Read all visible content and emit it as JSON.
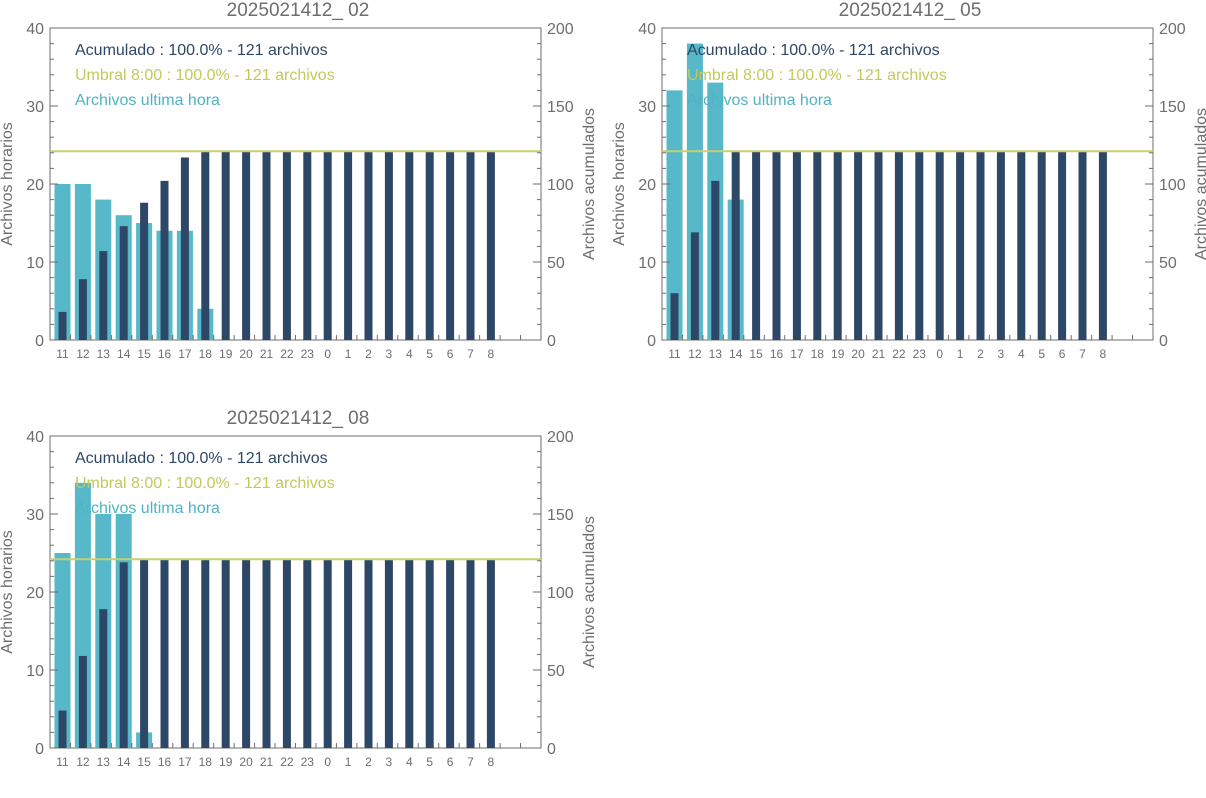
{
  "chart_data": [
    {
      "type": "bar",
      "title": "2025021412_ 02",
      "ylabel_left": "Archivos horarios",
      "ylabel_right": "Archivos acumulados",
      "categories": [
        "11",
        "12",
        "13",
        "14",
        "15",
        "16",
        "17",
        "18",
        "19",
        "20",
        "21",
        "22",
        "23",
        "0",
        "1",
        "2",
        "3",
        "4",
        "5",
        "6",
        "7",
        "8"
      ],
      "ylim_left": [
        0,
        40
      ],
      "ylim_right": [
        0,
        200
      ],
      "yticks_left": [
        0,
        10,
        20,
        30,
        40
      ],
      "yticks_right": [
        0,
        50,
        100,
        150,
        200
      ],
      "threshold": 121,
      "legend": [
        "Acumulado : 100.0% - 121 archivos",
        "Umbral 8:00 : 100.0% - 121 archivos",
        "Archivos ultima hora"
      ],
      "series": [
        {
          "name": "Archivos ultima hora",
          "axis": "left",
          "values": [
            20,
            20,
            18,
            16,
            15,
            14,
            14,
            4,
            0,
            0,
            0,
            0,
            0,
            0,
            0,
            0,
            0,
            0,
            0,
            0,
            0,
            0
          ]
        },
        {
          "name": "Acumulado",
          "axis": "right",
          "values": [
            18,
            39,
            57,
            73,
            88,
            102,
            117,
            121,
            121,
            121,
            121,
            121,
            121,
            121,
            121,
            121,
            121,
            121,
            121,
            121,
            121,
            121
          ]
        }
      ]
    },
    {
      "type": "bar",
      "title": "2025021412_ 05",
      "ylabel_left": "Archivos horarios",
      "ylabel_right": "Archivos acumulados",
      "categories": [
        "11",
        "12",
        "13",
        "14",
        "15",
        "16",
        "17",
        "18",
        "19",
        "20",
        "21",
        "22",
        "23",
        "0",
        "1",
        "2",
        "3",
        "4",
        "5",
        "6",
        "7",
        "8"
      ],
      "ylim_left": [
        0,
        40
      ],
      "ylim_right": [
        0,
        200
      ],
      "yticks_left": [
        0,
        10,
        20,
        30,
        40
      ],
      "yticks_right": [
        0,
        50,
        100,
        150,
        200
      ],
      "threshold": 121,
      "legend": [
        "Acumulado : 100.0% - 121 archivos",
        "Umbral 8:00 : 100.0% - 121 archivos",
        "Archivos ultima hora"
      ],
      "series": [
        {
          "name": "Archivos ultima hora",
          "axis": "left",
          "values": [
            32,
            38,
            33,
            18,
            0,
            0,
            0,
            0,
            0,
            0,
            0,
            0,
            0,
            0,
            0,
            0,
            0,
            0,
            0,
            0,
            0,
            0
          ]
        },
        {
          "name": "Acumulado",
          "axis": "right",
          "values": [
            30,
            69,
            102,
            121,
            121,
            121,
            121,
            121,
            121,
            121,
            121,
            121,
            121,
            121,
            121,
            121,
            121,
            121,
            121,
            121,
            121,
            121
          ]
        }
      ]
    },
    {
      "type": "bar",
      "title": "2025021412_ 08",
      "ylabel_left": "Archivos horarios",
      "ylabel_right": "Archivos acumulados",
      "categories": [
        "11",
        "12",
        "13",
        "14",
        "15",
        "16",
        "17",
        "18",
        "19",
        "20",
        "21",
        "22",
        "23",
        "0",
        "1",
        "2",
        "3",
        "4",
        "5",
        "6",
        "7",
        "8"
      ],
      "ylim_left": [
        0,
        40
      ],
      "ylim_right": [
        0,
        200
      ],
      "yticks_left": [
        0,
        10,
        20,
        30,
        40
      ],
      "yticks_right": [
        0,
        50,
        100,
        150,
        200
      ],
      "threshold": 121,
      "legend": [
        "Acumulado : 100.0% - 121 archivos",
        "Umbral 8:00 : 100.0% - 121 archivos",
        "Archivos ultima hora"
      ],
      "series": [
        {
          "name": "Archivos ultima hora",
          "axis": "left",
          "values": [
            25,
            34,
            30,
            30,
            2,
            0,
            0,
            0,
            0,
            0,
            0,
            0,
            0,
            0,
            0,
            0,
            0,
            0,
            0,
            0,
            0,
            0
          ]
        },
        {
          "name": "Acumulado",
          "axis": "right",
          "values": [
            24,
            59,
            89,
            119,
            121,
            121,
            121,
            121,
            121,
            121,
            121,
            121,
            121,
            121,
            121,
            121,
            121,
            121,
            121,
            121,
            121,
            121
          ]
        }
      ]
    }
  ],
  "colors": {
    "hourly": "#56b8c8",
    "cumulative": "#2d4766",
    "threshold": "#c8cf6e",
    "axis": "#6e6e6e",
    "legend_cumulative": "#2d4766",
    "legend_threshold": "#c3c95a",
    "legend_hourly": "#4fb3c6"
  }
}
